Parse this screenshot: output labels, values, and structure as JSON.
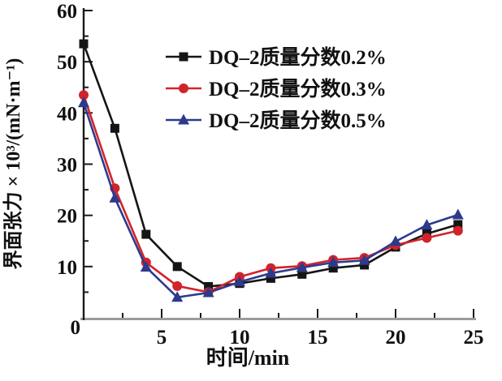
{
  "chart_data": {
    "type": "line",
    "x": [
      0,
      2,
      4,
      6,
      8,
      10,
      12,
      14,
      16,
      18,
      20,
      22,
      24
    ],
    "series": [
      {
        "name": "DQ–2质量分数0.2%",
        "marker": "square",
        "color": "#151515",
        "values": [
          53.5,
          37.0,
          16.3,
          10.0,
          6.1,
          6.7,
          7.7,
          8.5,
          9.7,
          10.3,
          13.8,
          16.4,
          18.2
        ]
      },
      {
        "name": "DQ–2质量分数0.3%",
        "marker": "circle",
        "color": "#d1232b",
        "values": [
          43.5,
          25.3,
          10.8,
          6.2,
          5.0,
          8.0,
          9.7,
          10.1,
          11.3,
          11.7,
          14.2,
          15.6,
          17.0
        ]
      },
      {
        "name": "DQ–2质量分数0.5%",
        "marker": "triangle",
        "color": "#2d3a8c",
        "values": [
          42.0,
          23.4,
          9.9,
          4.0,
          4.9,
          7.0,
          8.7,
          9.8,
          10.8,
          11.2,
          14.9,
          18.1,
          20.1
        ]
      }
    ],
    "xlabel": "时间/min",
    "ylabel": "界面张力 × 10³/(mN·m⁻¹)",
    "xlim": [
      0,
      25
    ],
    "ylim": [
      0,
      60
    ],
    "x_major_ticks": [
      5,
      10,
      15,
      20,
      25
    ],
    "x_minor_step": 2.5,
    "y_major_ticks": [
      10,
      20,
      30,
      40,
      50,
      60
    ],
    "y_minor_step": 5,
    "origin_label": "0",
    "grid": false,
    "legend_position": "top-right-inside"
  },
  "colors": {
    "background": "#ffffff",
    "y_axis_line": "#1a1a1a",
    "x_axis_line": "#9b9b9b",
    "tick": "#1a1a1a",
    "text": "#111111"
  }
}
